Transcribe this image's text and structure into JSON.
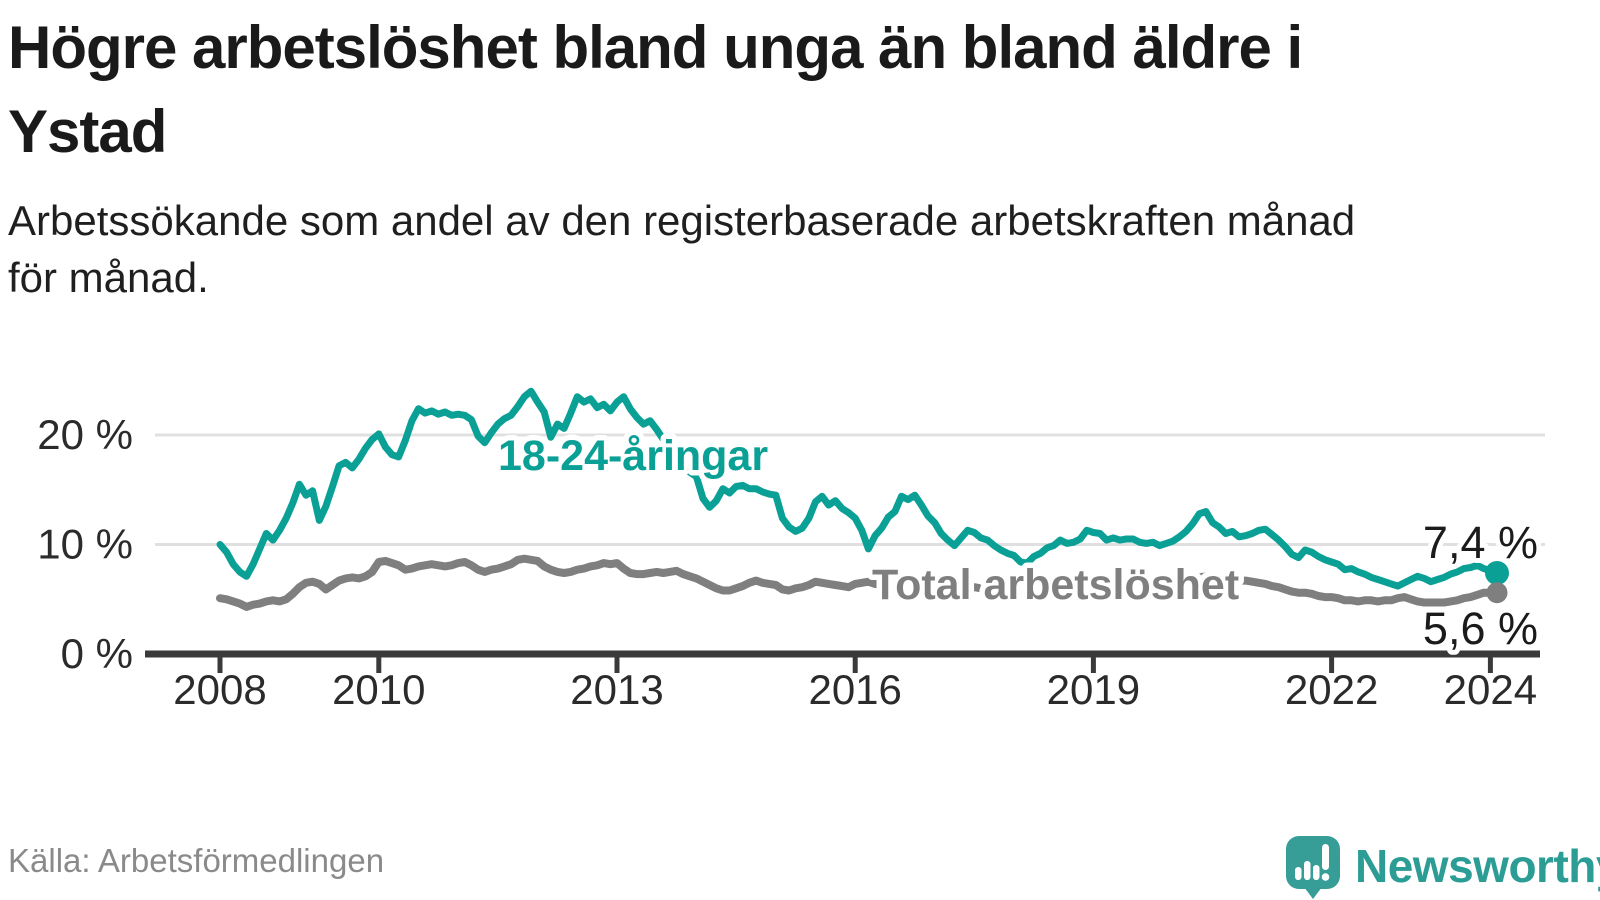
{
  "header": {
    "title_lines": [
      "Högre arbetslöshet bland unga än bland äldre i",
      "Ystad"
    ],
    "subtitle_lines": [
      "Arbetssökande som andel av den registerbaserade arbetskraften månad",
      "för månad."
    ]
  },
  "footer": {
    "source": "Källa: Arbetsförmedlingen",
    "logo_text": "Newsworthy",
    "logo_icon": "speech-bubble-bar-chart-exclamation"
  },
  "colors": {
    "teal": "#0aa096",
    "gray": "#7f7f7f",
    "axis": "#3a3a3a",
    "tick_label": "#2b2b2b",
    "gridline": "#e0e0e0",
    "value_label": "#1b1b1b",
    "logo_teal": "#379d97"
  },
  "chart_data": {
    "type": "line",
    "title": "Högre arbetslöshet bland unga än bland äldre i Ystad",
    "subtitle": "Arbetssökande som andel av den registerbaserade arbetskraften månad för månad.",
    "xlabel": "",
    "ylabel": "",
    "x_start_year": 2008,
    "x_step_months": 1,
    "x_end": "2024-02",
    "x_ticks": [
      2008,
      2010,
      2013,
      2016,
      2019,
      2022,
      2024
    ],
    "y_ticks": [
      {
        "value": 0,
        "label": "0 %"
      },
      {
        "value": 10,
        "label": "10 %"
      },
      {
        "value": 20,
        "label": "20 %"
      }
    ],
    "ylim": [
      0,
      25.5
    ],
    "grid": "horizontal",
    "legend_position": "inline-labels",
    "series": [
      {
        "id": "youth",
        "name": "18-24-åringar",
        "color": "#0aa096",
        "end_label": "7,4 %",
        "end_value": 7.4,
        "values": [
          10.0,
          9.3,
          8.2,
          7.5,
          7.1,
          8.2,
          9.6,
          11.0,
          10.4,
          11.3,
          12.4,
          13.8,
          15.5,
          14.5,
          14.9,
          12.2,
          13.5,
          15.3,
          17.2,
          17.5,
          17.0,
          17.8,
          18.8,
          19.6,
          20.1,
          18.9,
          18.2,
          18.0,
          19.5,
          21.3,
          22.4,
          22.0,
          22.2,
          21.9,
          22.1,
          21.8,
          21.9,
          21.8,
          21.4,
          19.9,
          19.3,
          20.2,
          21.0,
          21.5,
          21.8,
          22.6,
          23.5,
          24.0,
          23.0,
          22.1,
          19.8,
          21.0,
          20.6,
          22.0,
          23.5,
          23.0,
          23.3,
          22.5,
          22.8,
          22.2,
          23.0,
          23.5,
          22.4,
          21.6,
          21.0,
          21.3,
          20.5,
          19.6,
          18.7,
          17.9,
          17.2,
          16.6,
          16.2,
          14.2,
          13.4,
          14.0,
          15.1,
          14.7,
          15.3,
          15.4,
          15.1,
          15.1,
          14.8,
          14.6,
          14.5,
          12.4,
          11.6,
          11.2,
          11.5,
          12.4,
          13.9,
          14.4,
          13.6,
          14.0,
          13.3,
          12.9,
          12.4,
          11.3,
          9.6,
          10.8,
          11.5,
          12.5,
          13.0,
          14.4,
          14.1,
          14.5,
          13.6,
          12.6,
          12.0,
          11.0,
          10.4,
          9.9,
          10.6,
          11.3,
          11.1,
          10.6,
          10.4,
          9.9,
          9.5,
          9.2,
          9.0,
          8.4,
          8.3,
          8.9,
          9.2,
          9.7,
          9.9,
          10.4,
          10.1,
          10.2,
          10.5,
          11.3,
          11.1,
          11.0,
          10.4,
          10.6,
          10.4,
          10.5,
          10.5,
          10.2,
          10.1,
          10.2,
          9.9,
          10.1,
          10.3,
          10.7,
          11.2,
          11.9,
          12.8,
          13.0,
          12.0,
          11.6,
          11.0,
          11.2,
          10.7,
          10.8,
          11.0,
          11.3,
          11.4,
          10.9,
          10.4,
          9.8,
          9.1,
          8.8,
          9.5,
          9.3,
          8.9,
          8.6,
          8.4,
          8.2,
          7.7,
          7.8,
          7.5,
          7.3,
          7.0,
          6.8,
          6.6,
          6.4,
          6.2,
          6.5,
          6.8,
          7.1,
          6.9,
          6.6,
          6.8,
          7.0,
          7.3,
          7.5,
          7.8,
          7.9,
          8.1,
          7.8,
          7.6,
          7.4
        ]
      },
      {
        "id": "total",
        "name": "Total arbetslöshet",
        "color": "#7f7f7f",
        "end_label": "5,6 %",
        "end_value": 5.6,
        "values": [
          5.1,
          5.0,
          4.8,
          4.6,
          4.3,
          4.5,
          4.6,
          4.8,
          4.9,
          4.8,
          5.0,
          5.5,
          6.1,
          6.5,
          6.6,
          6.4,
          5.9,
          6.3,
          6.7,
          6.9,
          7.0,
          6.9,
          7.1,
          7.5,
          8.4,
          8.5,
          8.3,
          8.1,
          7.7,
          7.8,
          8.0,
          8.1,
          8.2,
          8.1,
          8.0,
          8.1,
          8.3,
          8.4,
          8.1,
          7.7,
          7.5,
          7.7,
          7.8,
          8.0,
          8.2,
          8.6,
          8.7,
          8.6,
          8.5,
          8.0,
          7.7,
          7.5,
          7.4,
          7.5,
          7.7,
          7.8,
          8.0,
          8.1,
          8.3,
          8.2,
          8.3,
          7.8,
          7.4,
          7.3,
          7.3,
          7.4,
          7.5,
          7.4,
          7.5,
          7.6,
          7.3,
          7.1,
          6.9,
          6.6,
          6.3,
          6.0,
          5.8,
          5.8,
          6.0,
          6.2,
          6.5,
          6.7,
          6.5,
          6.4,
          6.3,
          5.9,
          5.8,
          6.0,
          6.1,
          6.3,
          6.6,
          6.5,
          6.4,
          6.3,
          6.2,
          6.1,
          6.4,
          6.5,
          6.6,
          6.4,
          6.3,
          6.2,
          6.3,
          6.4,
          6.5,
          6.4,
          6.3,
          6.2,
          6.1,
          6.0,
          5.9,
          5.8,
          5.9,
          6.0,
          6.1,
          6.0,
          5.9,
          5.8,
          5.7,
          5.7,
          5.6,
          5.5,
          5.5,
          5.6,
          5.6,
          5.7,
          5.8,
          5.8,
          5.7,
          5.7,
          5.8,
          5.9,
          6.0,
          5.9,
          5.8,
          5.8,
          5.9,
          5.9,
          6.0,
          5.9,
          5.9,
          5.8,
          5.8,
          5.9,
          6.0,
          6.1,
          6.4,
          6.8,
          7.0,
          7.1,
          7.0,
          6.9,
          6.8,
          6.8,
          6.7,
          6.7,
          6.6,
          6.5,
          6.4,
          6.2,
          6.1,
          5.9,
          5.7,
          5.6,
          5.6,
          5.5,
          5.3,
          5.2,
          5.2,
          5.1,
          4.9,
          4.9,
          4.8,
          4.9,
          4.9,
          4.8,
          4.9,
          4.9,
          5.1,
          5.2,
          5.0,
          4.8,
          4.7,
          4.7,
          4.7,
          4.7,
          4.8,
          4.9,
          5.1,
          5.2,
          5.4,
          5.6,
          5.6,
          5.6
        ]
      }
    ]
  }
}
